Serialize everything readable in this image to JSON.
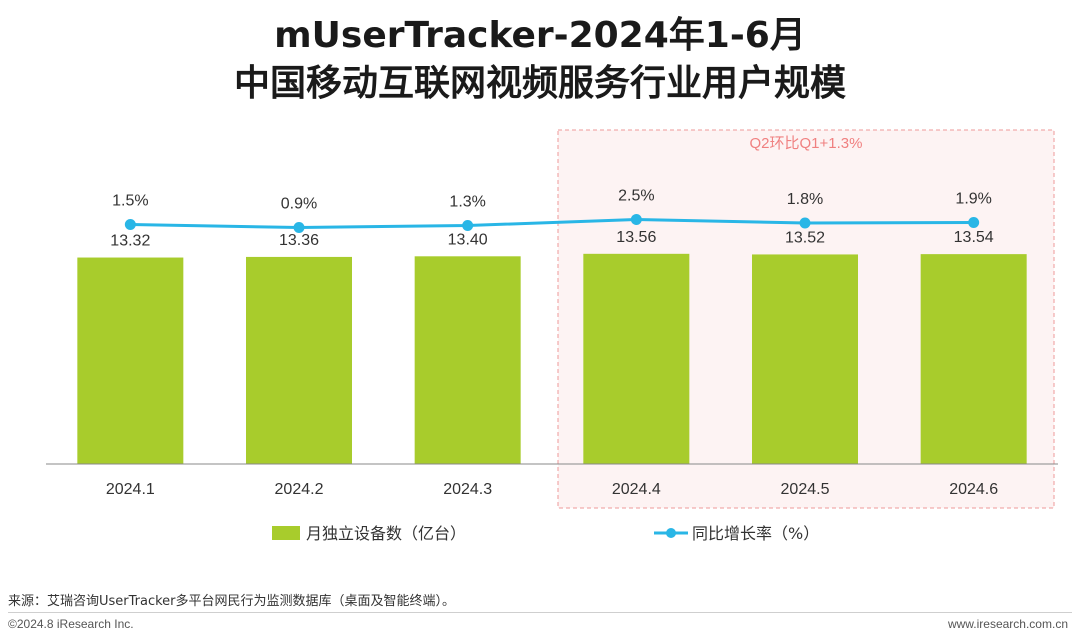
{
  "title": {
    "line1": "mUserTracker-2024年1-6月",
    "line2": "中国移动互联网视频服务行业用户规模"
  },
  "chart_data": {
    "type": "bar",
    "title": "mUserTracker-2024年1-6月 中国移动互联网视频服务行业用户规模",
    "categories": [
      "2024.1",
      "2024.2",
      "2024.3",
      "2024.4",
      "2024.5",
      "2024.6"
    ],
    "series": [
      {
        "name": "月独立设备数（亿台）",
        "type": "bar",
        "values": [
          13.32,
          13.36,
          13.4,
          13.56,
          13.52,
          13.54
        ],
        "labels": [
          "13.32",
          "13.36",
          "13.40",
          "13.56",
          "13.52",
          "13.54"
        ],
        "color": "#a8cc2c"
      },
      {
        "name": "同比增长率（%）",
        "type": "line",
        "values": [
          1.5,
          0.9,
          1.3,
          2.5,
          1.8,
          1.9
        ],
        "labels": [
          "1.5%",
          "0.9%",
          "1.3%",
          "2.5%",
          "1.8%",
          "1.9%"
        ],
        "color": "#29b6e6"
      }
    ],
    "annotation": {
      "text": "Q2环比Q1+1.3%",
      "categories": [
        "2024.4",
        "2024.5",
        "2024.6"
      ],
      "color": "#f08080"
    },
    "legend_position": "bottom-center"
  },
  "source": "来源：艾瑞咨询UserTracker多平台网民行为监测数据库（桌面及智能终端）。",
  "footer": {
    "copyright": "©2024.8 iResearch Inc.",
    "website": "www.iresearch.com.cn"
  }
}
